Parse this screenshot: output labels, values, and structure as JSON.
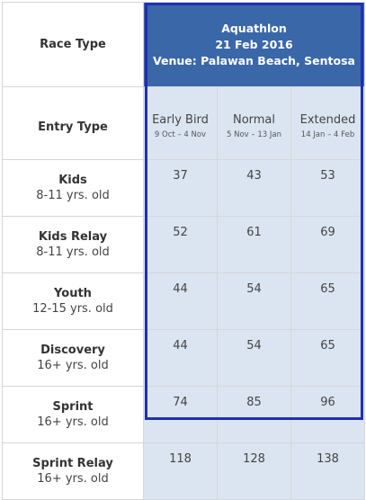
{
  "header": {
    "race_type_label": "Race Type",
    "event_name": "Aquathlon",
    "event_date": "21 Feb 2016",
    "event_venue": "Venue: Palawan Beach, Sentosa"
  },
  "entry": {
    "label": "Entry Type",
    "tiers": [
      {
        "name": "Early Bird",
        "dates": "9 Oct – 4 Nov"
      },
      {
        "name": "Normal",
        "dates": "5 Nov – 13 Jan"
      },
      {
        "name": "Extended",
        "dates": "14 Jan – 4 Feb"
      }
    ]
  },
  "categories": [
    {
      "name": "Kids",
      "age": "8-11 yrs. old",
      "prices": [
        "37",
        "43",
        "53"
      ]
    },
    {
      "name": "Kids Relay",
      "age": "8-11 yrs. old",
      "prices": [
        "52",
        "61",
        "69"
      ]
    },
    {
      "name": "Youth",
      "age": "12-15 yrs. old",
      "prices": [
        "44",
        "54",
        "65"
      ]
    },
    {
      "name": "Discovery",
      "age": "16+ yrs. old",
      "prices": [
        "44",
        "54",
        "65"
      ]
    },
    {
      "name": "Sprint",
      "age": "16+ yrs. old",
      "prices": [
        "74",
        "85",
        "96"
      ]
    },
    {
      "name": "Sprint Relay",
      "age": "16+ yrs. old",
      "prices": [
        "118",
        "128",
        "138"
      ]
    }
  ],
  "colors": {
    "header_bg": "#3a67a8",
    "cell_bg": "#dbe5f1",
    "outline": "#1f2fb5"
  }
}
